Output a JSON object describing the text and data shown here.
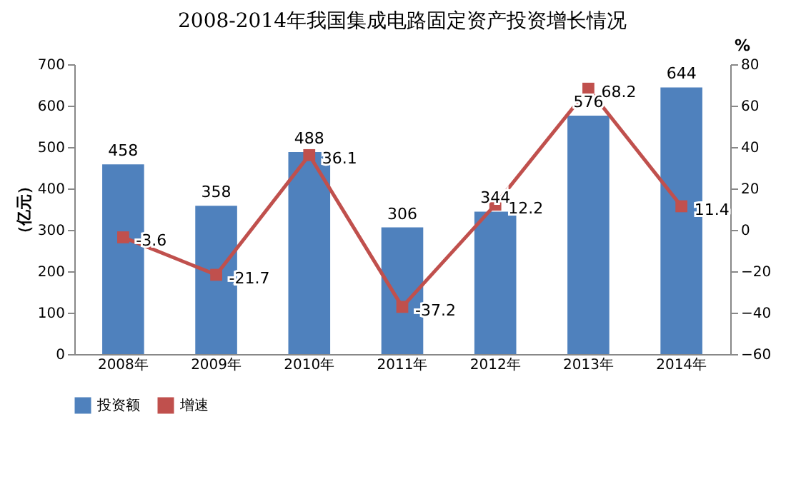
{
  "chart_data": {
    "type": "bar",
    "title": "2008-2014年我国集成电路固定资产投资增长情况",
    "ylabel": "（亿元）",
    "y2label": "%",
    "categories": [
      "2008年",
      "2009年",
      "2010年",
      "2011年",
      "2012年",
      "2013年",
      "2014年"
    ],
    "series": [
      {
        "name": "投资额",
        "color": "#4f81bd",
        "values": [
          458,
          358,
          488,
          306,
          344,
          576,
          644
        ]
      },
      {
        "name": "增速",
        "type": "line",
        "axis": "y2",
        "color": "#c0504d",
        "marker": "square",
        "values": [
          -3.6,
          -21.7,
          36.1,
          -37.2,
          12.2,
          68.2,
          11.4
        ]
      }
    ],
    "ylim": [
      0,
      700
    ],
    "yticks": [
      0,
      100,
      200,
      300,
      400,
      500,
      600,
      700
    ],
    "y2lim": [
      -60,
      80
    ],
    "y2ticks": [
      -60,
      -40,
      -20,
      0,
      20,
      40,
      60,
      80
    ],
    "data_labels": true,
    "legend": "bottom",
    "grid": false
  }
}
